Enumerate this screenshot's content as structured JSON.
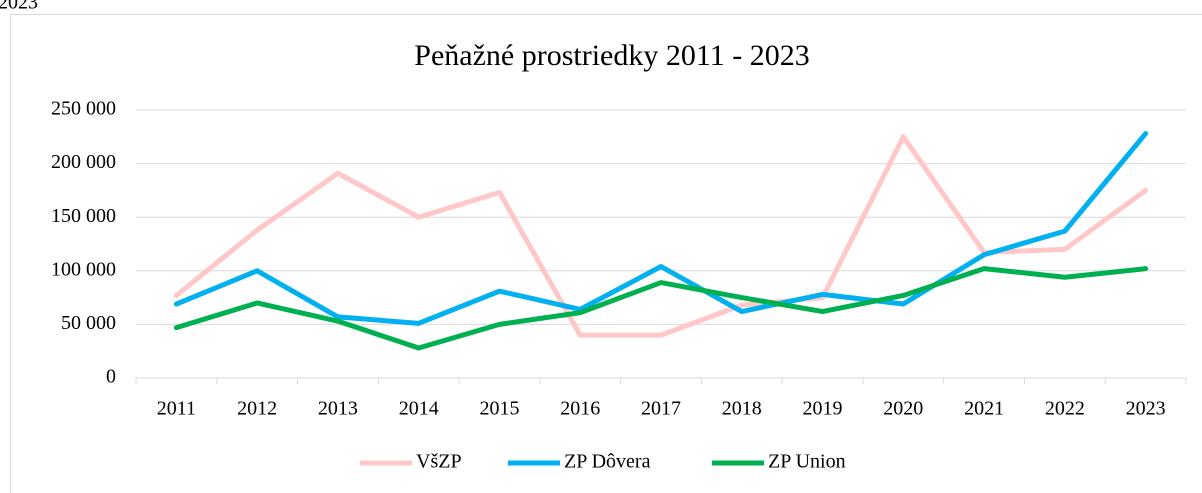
{
  "page_fragment": "2023",
  "chart_data": {
    "type": "line",
    "title": "Peňažné prostriedky 2011 - 2023",
    "categories": [
      "2011",
      "2012",
      "2013",
      "2014",
      "2015",
      "2016",
      "2017",
      "2018",
      "2019",
      "2020",
      "2021",
      "2022",
      "2023"
    ],
    "series": [
      {
        "name": "VšZP",
        "color": "#ffc7c7",
        "values": [
          77000,
          138000,
          191000,
          150000,
          173000,
          40000,
          40000,
          68000,
          75000,
          225000,
          117000,
          120000,
          175000
        ]
      },
      {
        "name": "ZP Dôvera",
        "color": "#00b0f0",
        "values": [
          69000,
          100000,
          57000,
          51000,
          81000,
          64000,
          104000,
          62000,
          78000,
          69000,
          115000,
          137000,
          228000
        ]
      },
      {
        "name": "ZP Union",
        "color": "#00b050",
        "values": [
          47000,
          70000,
          53000,
          28000,
          50000,
          61000,
          89000,
          75000,
          62000,
          77000,
          102000,
          94000,
          102000
        ]
      }
    ],
    "ylim": [
      0,
      250000
    ],
    "yticks": [
      0,
      {
        "value": 50000,
        "label": "50 000"
      },
      {
        "value": 100000,
        "label": "100 000"
      },
      {
        "value": 150000,
        "label": "150 000"
      },
      {
        "value": 200000,
        "label": "200 000"
      },
      {
        "value": 250000,
        "label": "250 000"
      }
    ],
    "grid": true,
    "legend": "bottom"
  }
}
